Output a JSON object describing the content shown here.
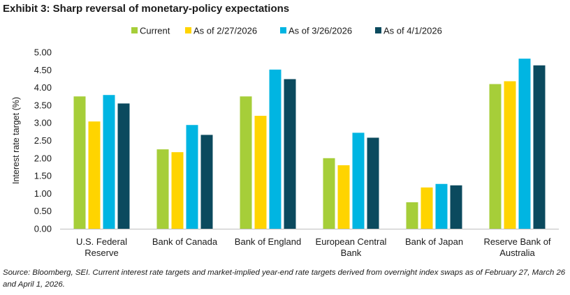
{
  "chart_data": {
    "type": "bar",
    "title": "Exhibit 3: Sharp reversal of monetary-policy expectations",
    "ylabel": "Interest rate target (%)",
    "xlabel": "",
    "ylim": [
      0,
      5
    ],
    "yticks": [
      "0.00",
      "0.50",
      "1.00",
      "1.50",
      "2.00",
      "2.50",
      "3.00",
      "3.50",
      "4.00",
      "4.50",
      "5.00"
    ],
    "categories": [
      [
        "U.S. Federal",
        "Reserve"
      ],
      [
        "Bank of Canada"
      ],
      [
        "Bank of England"
      ],
      [
        "European Central",
        "Bank"
      ],
      [
        "Bank of Japan"
      ],
      [
        "Reserve Bank of",
        "Australia"
      ]
    ],
    "series": [
      {
        "name": "Current",
        "color": "#a6ce39",
        "values": [
          3.75,
          2.25,
          3.75,
          2.0,
          0.75,
          4.1
        ]
      },
      {
        "name": "As of 2/27/2026",
        "color": "#ffd400",
        "values": [
          3.04,
          2.17,
          3.2,
          1.8,
          1.17,
          4.18
        ]
      },
      {
        "name": "As of 3/26/2026",
        "color": "#00b5e2",
        "values": [
          3.79,
          2.94,
          4.51,
          2.72,
          1.27,
          4.82
        ]
      },
      {
        "name": "As of 4/1/2026",
        "color": "#0b4a5e",
        "values": [
          3.55,
          2.66,
          4.24,
          2.58,
          1.23,
          4.63
        ]
      }
    ],
    "legend": "top-center",
    "source": "Source: Bloomberg, SEI. Current interest rate targets and market-implied year-end rate targets derived from overnight index swaps as of February 27, March 26 and April 1, 2026."
  }
}
